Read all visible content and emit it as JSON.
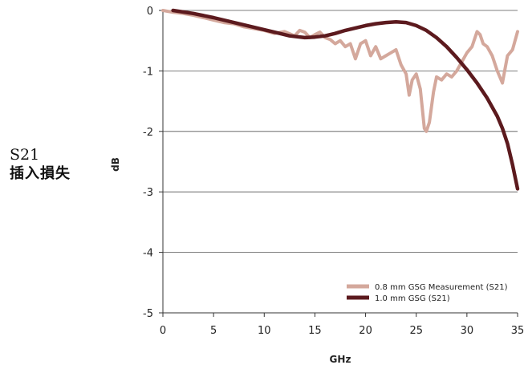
{
  "side_label": {
    "line1": "S21",
    "line2": "插入損失"
  },
  "chart_data": {
    "type": "line",
    "xlabel": "GHz",
    "ylabel": "dB",
    "xlim": [
      0,
      35
    ],
    "ylim": [
      -5,
      0
    ],
    "x_ticks": [
      0,
      5,
      10,
      15,
      20,
      25,
      30,
      35
    ],
    "y_ticks": [
      0,
      -1,
      -2,
      -3,
      -4,
      -5
    ],
    "grid": "horizontal",
    "legend_position": "bottom-right",
    "series": [
      {
        "name": "0.8 mm GSG Measurement (S21)",
        "color": "#d4a89c",
        "x": [
          0,
          1,
          2,
          3,
          4,
          5,
          6,
          7,
          8,
          9,
          10,
          11,
          12,
          13,
          13.5,
          14,
          14.5,
          15,
          15.5,
          16,
          16.5,
          17,
          17.5,
          18,
          18.5,
          19,
          19.5,
          20,
          20.5,
          21,
          21.5,
          22,
          22.5,
          23,
          23.5,
          24,
          24.3,
          24.6,
          25,
          25.4,
          25.8,
          26,
          26.3,
          26.7,
          27,
          27.5,
          28,
          28.5,
          29,
          29.5,
          30,
          30.5,
          31,
          31.3,
          31.6,
          32,
          32.5,
          33,
          33.5,
          34,
          34.5,
          35
        ],
        "y": [
          0,
          -0.03,
          -0.05,
          -0.08,
          -0.12,
          -0.16,
          -0.2,
          -0.22,
          -0.27,
          -0.3,
          -0.33,
          -0.38,
          -0.35,
          -0.42,
          -0.33,
          -0.36,
          -0.45,
          -0.4,
          -0.36,
          -0.45,
          -0.48,
          -0.55,
          -0.5,
          -0.6,
          -0.55,
          -0.8,
          -0.55,
          -0.5,
          -0.75,
          -0.6,
          -0.8,
          -0.75,
          -0.7,
          -0.65,
          -0.9,
          -1.05,
          -1.4,
          -1.15,
          -1.05,
          -1.3,
          -1.95,
          -2.0,
          -1.85,
          -1.35,
          -1.1,
          -1.15,
          -1.05,
          -1.1,
          -1.0,
          -0.85,
          -0.7,
          -0.6,
          -0.35,
          -0.4,
          -0.55,
          -0.6,
          -0.75,
          -1.0,
          -1.2,
          -0.75,
          -0.65,
          -0.35
        ]
      },
      {
        "name": "1.0 mm GSG (S21)",
        "color": "#5c1a1e",
        "x": [
          1,
          3,
          5,
          7,
          9,
          11,
          12.5,
          14,
          15,
          16,
          17,
          18,
          19,
          20,
          21,
          22,
          23,
          24,
          25,
          26,
          27,
          28,
          29,
          30,
          31,
          32,
          33,
          33.5,
          34,
          34.5,
          35
        ],
        "y": [
          0,
          -0.05,
          -0.12,
          -0.2,
          -0.28,
          -0.36,
          -0.42,
          -0.45,
          -0.44,
          -0.42,
          -0.38,
          -0.33,
          -0.29,
          -0.25,
          -0.22,
          -0.2,
          -0.19,
          -0.2,
          -0.25,
          -0.33,
          -0.45,
          -0.6,
          -0.78,
          -0.98,
          -1.2,
          -1.45,
          -1.75,
          -1.95,
          -2.2,
          -2.55,
          -2.95
        ]
      }
    ]
  }
}
